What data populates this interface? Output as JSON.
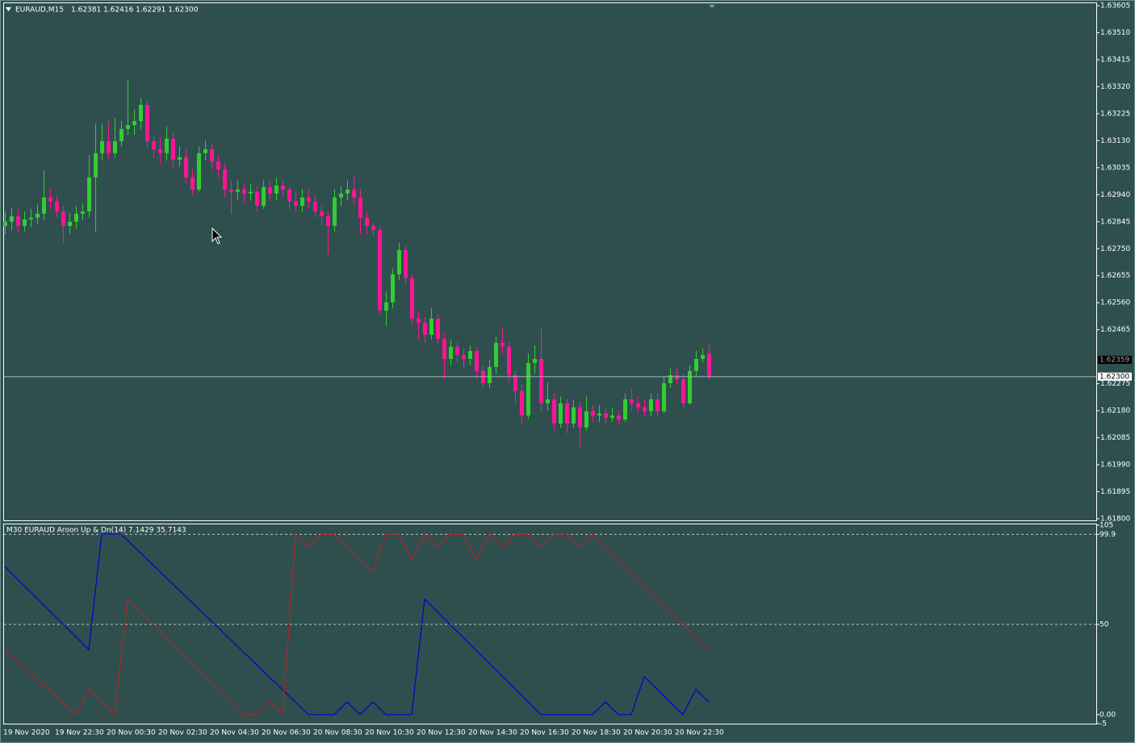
{
  "chart_data": {
    "type": "candlestick",
    "header": {
      "symbol": "EURAUD,M15",
      "ohlc": "1.62381 1.62416 1.62291 1.62300"
    },
    "bull_color": "#32cd32",
    "bear_color": "#ff1493",
    "ylim": [
      1.618,
      1.63605
    ],
    "yticks": [
      {
        "value": 1.63605,
        "label": "1.63605"
      },
      {
        "value": 1.6351,
        "label": "1.63510"
      },
      {
        "value": 1.63415,
        "label": "1.63415"
      },
      {
        "value": 1.6332,
        "label": "1.63320"
      },
      {
        "value": 1.63225,
        "label": "1.63225"
      },
      {
        "value": 1.6313,
        "label": "1.63130"
      },
      {
        "value": 1.63035,
        "label": "1.63035"
      },
      {
        "value": 1.6294,
        "label": "1.62940"
      },
      {
        "value": 1.62845,
        "label": "1.62845"
      },
      {
        "value": 1.6275,
        "label": "1.62750"
      },
      {
        "value": 1.62655,
        "label": "1.62655"
      },
      {
        "value": 1.6256,
        "label": "1.62560"
      },
      {
        "value": 1.62465,
        "label": "1.62465"
      },
      {
        "value": 1.62275,
        "label": "1.62275"
      },
      {
        "value": 1.6218,
        "label": "1.62180"
      },
      {
        "value": 1.62085,
        "label": "1.62085"
      },
      {
        "value": 1.6199,
        "label": "1.61990"
      },
      {
        "value": 1.61895,
        "label": "1.61895"
      },
      {
        "value": 1.618,
        "label": "1.61800"
      }
    ],
    "ask_marker": {
      "value": 1.62359,
      "label": "1.62359"
    },
    "bid_line": {
      "value": 1.623,
      "label": "1.62300"
    },
    "time_labels": [
      "19 Nov 2020",
      "19 Nov 22:30",
      "20 Nov 00:30",
      "20 Nov 02:30",
      "20 Nov 04:30",
      "20 Nov 06:30",
      "20 Nov 08:30",
      "20 Nov 10:30",
      "20 Nov 12:30",
      "20 Nov 14:30",
      "20 Nov 16:30",
      "20 Nov 18:30",
      "20 Nov 20:30",
      "20 Nov 22:30"
    ],
    "candles": [
      [
        1.6283,
        1.6288,
        1.628,
        1.62845
      ],
      [
        1.62845,
        1.62895,
        1.62815,
        1.62864
      ],
      [
        1.62864,
        1.6289,
        1.62805,
        1.6283
      ],
      [
        1.6283,
        1.6288,
        1.6281,
        1.62853
      ],
      [
        1.62853,
        1.6289,
        1.62825,
        1.62859
      ],
      [
        1.62859,
        1.62905,
        1.62835,
        1.62873
      ],
      [
        1.62873,
        1.63025,
        1.6285,
        1.6293
      ],
      [
        1.6293,
        1.6296,
        1.6289,
        1.62916
      ],
      [
        1.62916,
        1.62935,
        1.6286,
        1.62881
      ],
      [
        1.62881,
        1.629,
        1.6277,
        1.6283
      ],
      [
        1.6283,
        1.62875,
        1.628,
        1.62845
      ],
      [
        1.62845,
        1.629,
        1.6282,
        1.62873
      ],
      [
        1.62873,
        1.6291,
        1.6285,
        1.62881
      ],
      [
        1.62881,
        1.6308,
        1.6286,
        1.63001
      ],
      [
        1.63001,
        1.6319,
        1.6281,
        1.63086
      ],
      [
        1.63086,
        1.6319,
        1.6306,
        1.63128
      ],
      [
        1.63128,
        1.632,
        1.63065,
        1.63086
      ],
      [
        1.63086,
        1.6321,
        1.6307,
        1.63128
      ],
      [
        1.63128,
        1.632,
        1.6311,
        1.63171
      ],
      [
        1.63171,
        1.63345,
        1.6315,
        1.63185
      ],
      [
        1.63185,
        1.6324,
        1.6315,
        1.63199
      ],
      [
        1.63199,
        1.6328,
        1.6317,
        1.63256
      ],
      [
        1.63256,
        1.6327,
        1.631,
        1.63128
      ],
      [
        1.63128,
        1.6315,
        1.6307,
        1.631
      ],
      [
        1.631,
        1.6314,
        1.6305,
        1.63086
      ],
      [
        1.63086,
        1.6318,
        1.6306,
        1.63137
      ],
      [
        1.63137,
        1.6316,
        1.6303,
        1.63063
      ],
      [
        1.63063,
        1.6311,
        1.6304,
        1.63072
      ],
      [
        1.63072,
        1.631,
        1.6298,
        1.63001
      ],
      [
        1.63001,
        1.6303,
        1.6294,
        1.62958
      ],
      [
        1.62958,
        1.6311,
        1.6295,
        1.63086
      ],
      [
        1.63086,
        1.6313,
        1.6306,
        1.631
      ],
      [
        1.631,
        1.6312,
        1.6303,
        1.63057
      ],
      [
        1.63057,
        1.6308,
        1.63,
        1.63029
      ],
      [
        1.63029,
        1.6305,
        1.6293,
        1.62958
      ],
      [
        1.62958,
        1.6299,
        1.6287,
        1.6295
      ],
      [
        1.6295,
        1.6299,
        1.6292,
        1.62958
      ],
      [
        1.62958,
        1.6298,
        1.6291,
        1.62944
      ],
      [
        1.62944,
        1.6298,
        1.6292,
        1.6295
      ],
      [
        1.6295,
        1.6297,
        1.6288,
        1.62901
      ],
      [
        1.62901,
        1.6299,
        1.6289,
        1.62967
      ],
      [
        1.62967,
        1.6299,
        1.6292,
        1.62944
      ],
      [
        1.62944,
        1.63,
        1.6292,
        1.62972
      ],
      [
        1.62972,
        1.6299,
        1.6293,
        1.62958
      ],
      [
        1.62958,
        1.6297,
        1.6289,
        1.62916
      ],
      [
        1.62916,
        1.6295,
        1.6288,
        1.62901
      ],
      [
        1.62901,
        1.6296,
        1.6288,
        1.6293
      ],
      [
        1.6293,
        1.6296,
        1.6289,
        1.62916
      ],
      [
        1.62916,
        1.6294,
        1.6286,
        1.62881
      ],
      [
        1.62881,
        1.629,
        1.6283,
        1.62864
      ],
      [
        1.62864,
        1.6288,
        1.6273,
        1.6283
      ],
      [
        1.6283,
        1.6296,
        1.6281,
        1.6293
      ],
      [
        1.6293,
        1.6297,
        1.629,
        1.62944
      ],
      [
        1.62944,
        1.6299,
        1.6292,
        1.62958
      ],
      [
        1.62958,
        1.6301,
        1.629,
        1.6293
      ],
      [
        1.6293,
        1.6296,
        1.628,
        1.62859
      ],
      [
        1.62859,
        1.6288,
        1.628,
        1.6283
      ],
      [
        1.6283,
        1.6284,
        1.6279,
        1.62816
      ],
      [
        1.62816,
        1.6283,
        1.6252,
        1.62532
      ],
      [
        1.62532,
        1.626,
        1.6248,
        1.62561
      ],
      [
        1.62561,
        1.6268,
        1.6254,
        1.6266
      ],
      [
        1.6266,
        1.6277,
        1.6264,
        1.62745
      ],
      [
        1.62745,
        1.6276,
        1.6262,
        1.62646
      ],
      [
        1.62646,
        1.6266,
        1.6248,
        1.62504
      ],
      [
        1.62504,
        1.6253,
        1.6243,
        1.6249
      ],
      [
        1.6249,
        1.6251,
        1.6242,
        1.62447
      ],
      [
        1.62447,
        1.6254,
        1.6243,
        1.62504
      ],
      [
        1.62504,
        1.6252,
        1.6241,
        1.62433
      ],
      [
        1.62433,
        1.6245,
        1.6229,
        1.62362
      ],
      [
        1.62362,
        1.6243,
        1.6234,
        1.62405
      ],
      [
        1.62405,
        1.6242,
        1.6235,
        1.62376
      ],
      [
        1.62376,
        1.624,
        1.6233,
        1.62362
      ],
      [
        1.62362,
        1.6241,
        1.6234,
        1.6239
      ],
      [
        1.6239,
        1.624,
        1.6229,
        1.6232
      ],
      [
        1.6232,
        1.6234,
        1.6226,
        1.62277
      ],
      [
        1.62277,
        1.6236,
        1.6226,
        1.62334
      ],
      [
        1.62334,
        1.6244,
        1.6231,
        1.62419
      ],
      [
        1.62419,
        1.6247,
        1.6238,
        1.62405
      ],
      [
        1.62405,
        1.6242,
        1.6228,
        1.62305
      ],
      [
        1.62305,
        1.6232,
        1.622,
        1.62249
      ],
      [
        1.62249,
        1.6227,
        1.6213,
        1.62163
      ],
      [
        1.62163,
        1.6238,
        1.6215,
        1.62348
      ],
      [
        1.62348,
        1.6241,
        1.6231,
        1.62362
      ],
      [
        1.62362,
        1.6247,
        1.6218,
        1.62206
      ],
      [
        1.62206,
        1.6228,
        1.6218,
        1.6222
      ],
      [
        1.6222,
        1.6224,
        1.6211,
        1.62135
      ],
      [
        1.62135,
        1.6223,
        1.6212,
        1.62206
      ],
      [
        1.62206,
        1.6222,
        1.621,
        1.62135
      ],
      [
        1.62135,
        1.6222,
        1.6212,
        1.62192
      ],
      [
        1.62192,
        1.6221,
        1.6205,
        1.62121
      ],
      [
        1.62121,
        1.6223,
        1.6211,
        1.62178
      ],
      [
        1.62178,
        1.622,
        1.6214,
        1.62163
      ],
      [
        1.62163,
        1.622,
        1.6214,
        1.6217
      ],
      [
        1.6217,
        1.6219,
        1.6213,
        1.62155
      ],
      [
        1.62155,
        1.6219,
        1.6214,
        1.62163
      ],
      [
        1.62163,
        1.6218,
        1.6213,
        1.62149
      ],
      [
        1.62149,
        1.6224,
        1.6214,
        1.6222
      ],
      [
        1.6222,
        1.6226,
        1.6218,
        1.62206
      ],
      [
        1.62206,
        1.6223,
        1.6217,
        1.62192
      ],
      [
        1.62192,
        1.6222,
        1.6216,
        1.62178
      ],
      [
        1.62178,
        1.6224,
        1.6216,
        1.6222
      ],
      [
        1.6222,
        1.6224,
        1.6216,
        1.62178
      ],
      [
        1.62178,
        1.623,
        1.6217,
        1.62277
      ],
      [
        1.62277,
        1.6233,
        1.6226,
        1.62305
      ],
      [
        1.62305,
        1.6233,
        1.6227,
        1.62291
      ],
      [
        1.62291,
        1.6231,
        1.6219,
        1.62206
      ],
      [
        1.62206,
        1.6234,
        1.622,
        1.6232
      ],
      [
        1.6232,
        1.6239,
        1.623,
        1.62362
      ],
      [
        1.62362,
        1.624,
        1.6235,
        1.62376
      ],
      [
        1.62381,
        1.62416,
        1.62291,
        1.623
      ]
    ],
    "indicator": {
      "title": "M30 EURAUD Aroon Up & Dn(14) 7.1429 35.7143",
      "ylim": [
        -5,
        105
      ],
      "yticks": [
        105,
        99.9,
        50,
        {
          "value": 0,
          "label": "0.00"
        },
        -5
      ],
      "levels": [
        99.9,
        50
      ],
      "series": [
        {
          "color": "#0000cd",
          "x": [
            0,
            13,
            15,
            18,
            47,
            51,
            53,
            55,
            57,
            59,
            63,
            65,
            83,
            91,
            93,
            95,
            97,
            99,
            105,
            107,
            109
          ],
          "values": [
            82,
            36,
            100,
            100,
            0,
            0,
            7,
            0,
            7,
            0,
            0,
            64,
            0,
            0,
            7,
            0,
            0,
            21,
            0,
            14,
            7
          ]
        },
        {
          "color": "#b22222",
          "x": [
            0,
            11,
            13,
            17,
            19,
            37,
            39,
            41,
            43,
            45,
            47,
            49,
            51,
            57,
            59,
            61,
            63,
            65,
            67,
            69,
            71,
            73,
            75,
            77,
            79,
            81,
            83,
            85,
            87,
            89,
            91,
            109
          ],
          "values": [
            36,
            0,
            14,
            0,
            64,
            0,
            0,
            7,
            0,
            100,
            93,
            100,
            100,
            79,
            100,
            100,
            86,
            100,
            93,
            100,
            100,
            86,
            100,
            93,
            100,
            100,
            93,
            100,
            100,
            93,
            100,
            36
          ]
        }
      ]
    }
  }
}
